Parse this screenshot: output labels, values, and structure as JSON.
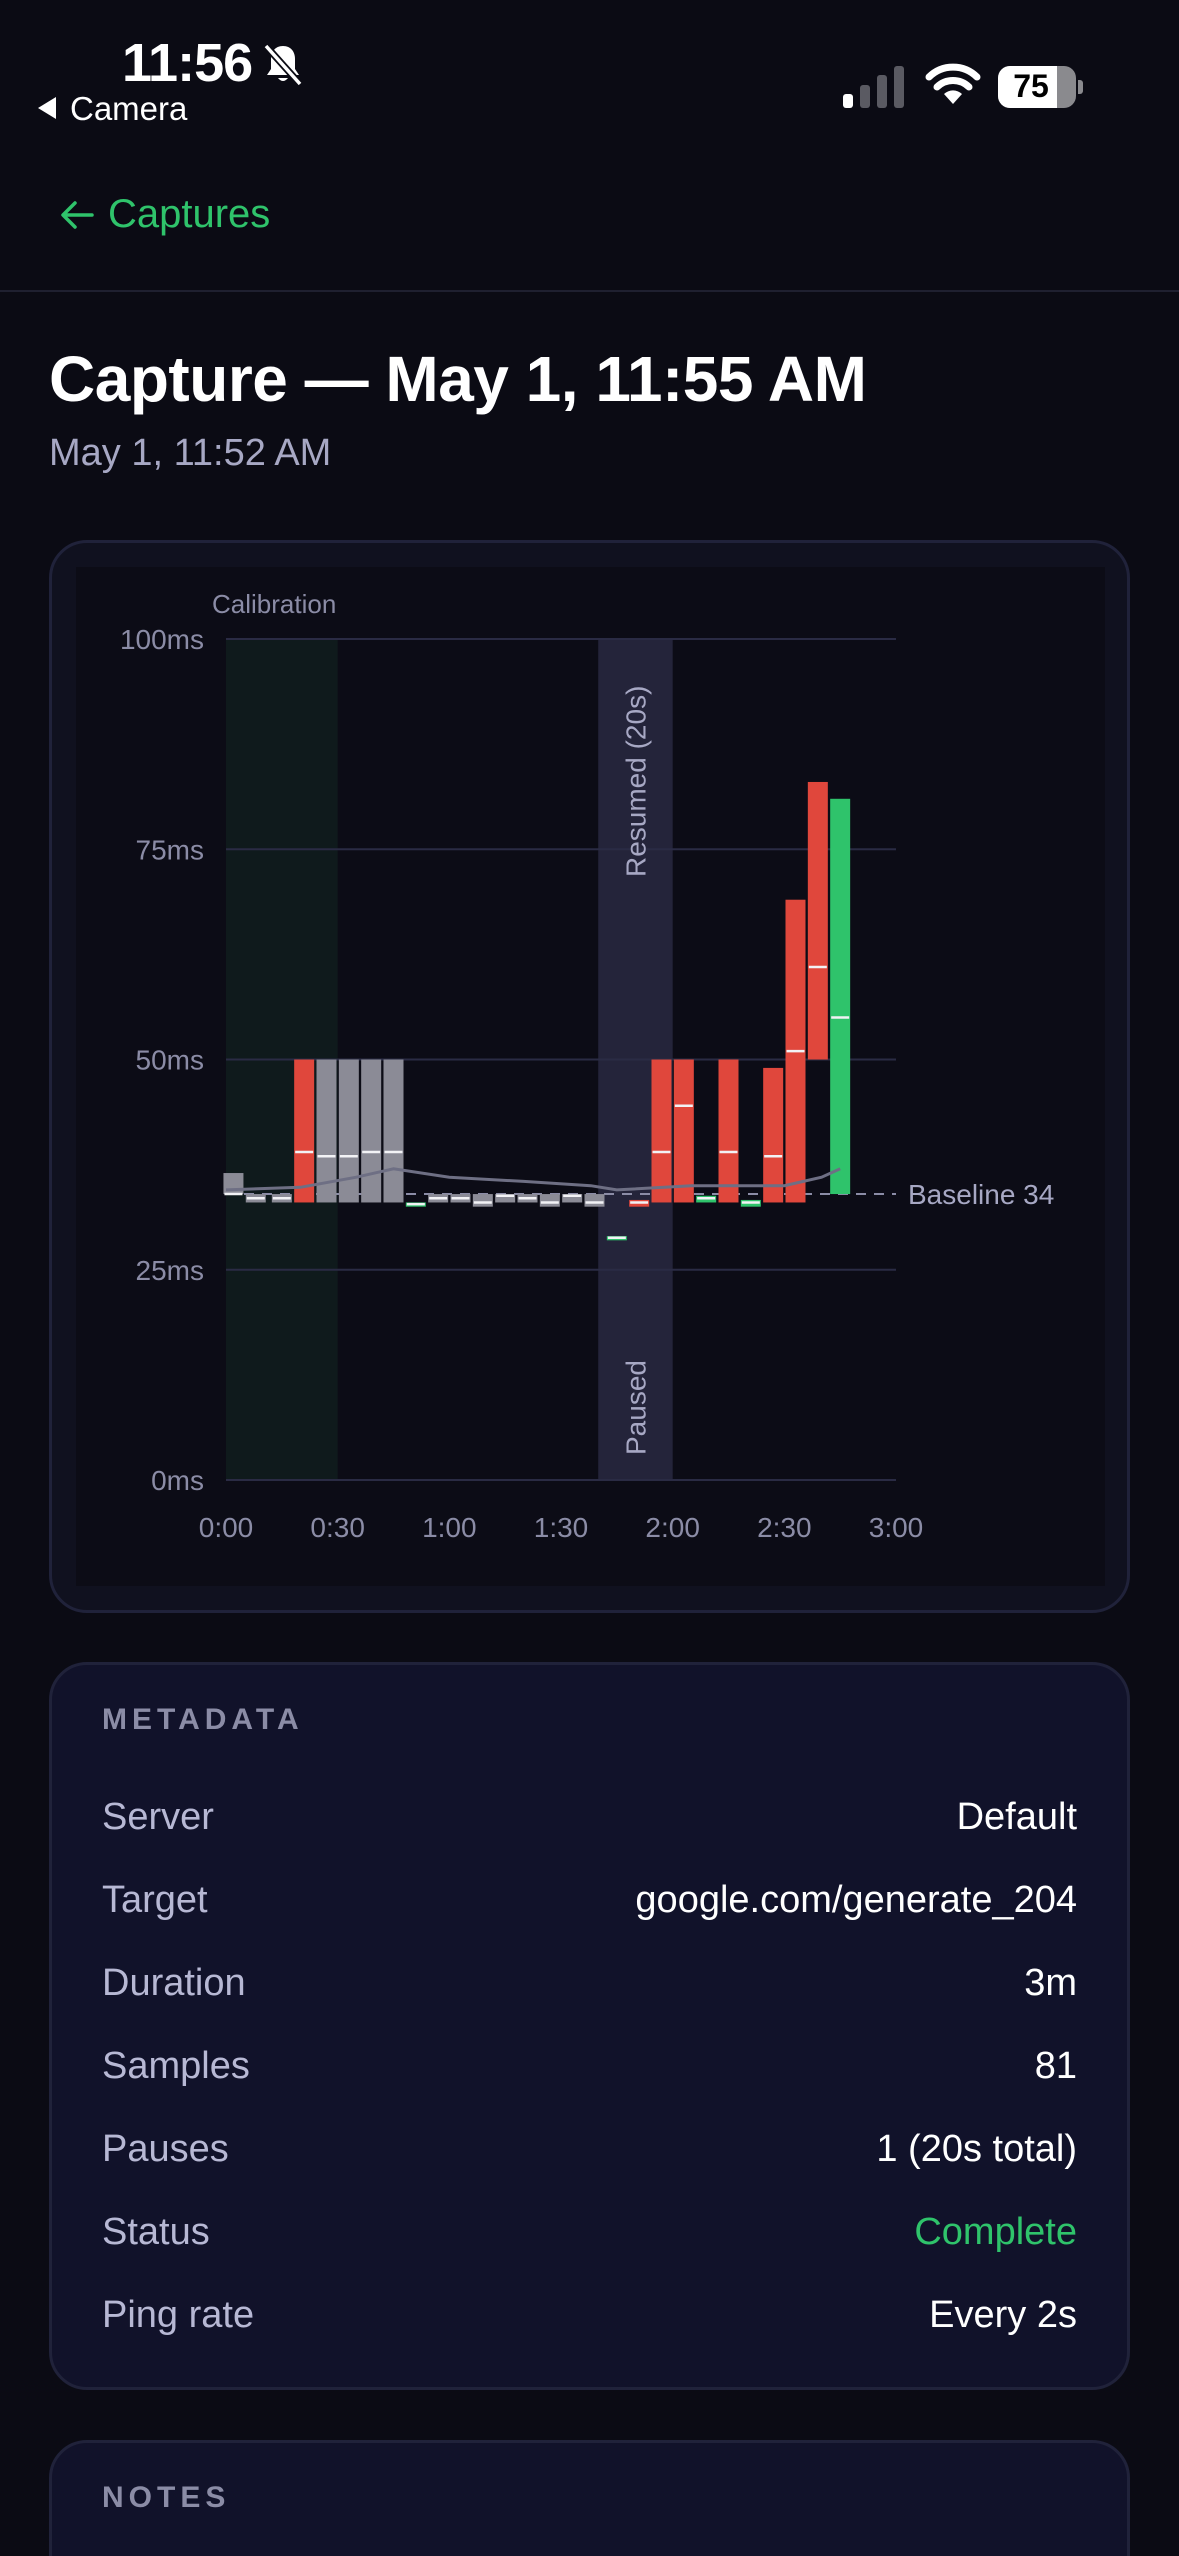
{
  "status_bar": {
    "time": "11:56",
    "back_app": "Camera",
    "battery": "75",
    "battery_level": 0.75
  },
  "nav": {
    "back_label": "Captures"
  },
  "header": {
    "title": "Capture — May 1, 11:55 AM",
    "subtitle": "May 1, 11:52 AM"
  },
  "chart_data": {
    "type": "bar",
    "x_unit": "time (m:ss)",
    "xlim": [
      0,
      180
    ],
    "ylim": [
      0,
      100
    ],
    "x_ticks": [
      "0:00",
      "0:30",
      "1:00",
      "1:30",
      "2:00",
      "2:30",
      "3:00"
    ],
    "y_ticks": [
      "0ms",
      "25ms",
      "50ms",
      "75ms",
      "100ms"
    ],
    "baseline": {
      "value": 34,
      "label": "Baseline 34"
    },
    "annotations": [
      {
        "label": "Calibration",
        "x_start": 0,
        "x_end": 30
      },
      {
        "label": "Paused",
        "x_start": 100,
        "x_end": 120
      },
      {
        "label": "Resumed (20s)",
        "x_start": 100,
        "x_end": 120
      }
    ],
    "bars": [
      {
        "x": 2,
        "low": 34,
        "high": 36.5,
        "mid": 34,
        "color": "#8b8b96"
      },
      {
        "x": 8,
        "low": 33,
        "high": 34,
        "mid": 33.5,
        "color": "#8b8b96"
      },
      {
        "x": 15,
        "low": 33,
        "high": 34,
        "mid": 33.5,
        "color": "#8b8b96"
      },
      {
        "x": 21,
        "low": 33,
        "high": 50,
        "mid": 39,
        "color": "#e0473c"
      },
      {
        "x": 27,
        "low": 33,
        "high": 50,
        "mid": 38.5,
        "color": "#8b8b96"
      },
      {
        "x": 33,
        "low": 33,
        "high": 50,
        "mid": 38.5,
        "color": "#8b8b96"
      },
      {
        "x": 39,
        "low": 33,
        "high": 50,
        "mid": 39,
        "color": "#8b8b96"
      },
      {
        "x": 45,
        "low": 33,
        "high": 50,
        "mid": 39,
        "color": "#8b8b96"
      },
      {
        "x": 51,
        "low": 32.5,
        "high": 33,
        "mid": 32.8,
        "color": "#2fc36b"
      },
      {
        "x": 57,
        "low": 33,
        "high": 34,
        "mid": 33.5,
        "color": "#8b8b96"
      },
      {
        "x": 63,
        "low": 33,
        "high": 34,
        "mid": 33.5,
        "color": "#8b8b96"
      },
      {
        "x": 69,
        "low": 32.5,
        "high": 34,
        "mid": 33,
        "color": "#8b8b96"
      },
      {
        "x": 75,
        "low": 33,
        "high": 34,
        "mid": 33.8,
        "color": "#8b8b96"
      },
      {
        "x": 81,
        "low": 33,
        "high": 34,
        "mid": 33.5,
        "color": "#8b8b96"
      },
      {
        "x": 87,
        "low": 32.5,
        "high": 34,
        "mid": 33,
        "color": "#8b8b96"
      },
      {
        "x": 93,
        "low": 33,
        "high": 34,
        "mid": 33.8,
        "color": "#8b8b96"
      },
      {
        "x": 99,
        "low": 32.5,
        "high": 34,
        "mid": 33,
        "color": "#8b8b96"
      },
      {
        "x": 105,
        "low": 28.5,
        "high": 29,
        "mid": 28.8,
        "color": "#2fc36b"
      },
      {
        "x": 111,
        "low": 32.5,
        "high": 33.3,
        "mid": 33,
        "color": "#e0473c"
      },
      {
        "x": 117,
        "low": 33,
        "high": 50,
        "mid": 39,
        "color": "#e0473c"
      },
      {
        "x": 123,
        "low": 33,
        "high": 50,
        "mid": 44.5,
        "color": "#e0473c"
      },
      {
        "x": 129,
        "low": 33,
        "high": 33.8,
        "mid": 33.5,
        "color": "#2fc36b"
      },
      {
        "x": 135,
        "low": 33,
        "high": 50,
        "mid": 39,
        "color": "#e0473c"
      },
      {
        "x": 141,
        "low": 32.5,
        "high": 33.3,
        "mid": 33,
        "color": "#2fc36b"
      },
      {
        "x": 147,
        "low": 33,
        "high": 49,
        "mid": 38.5,
        "color": "#e0473c"
      },
      {
        "x": 153,
        "low": 33,
        "high": 69,
        "mid": 51,
        "color": "#e0473c"
      },
      {
        "x": 159,
        "low": 50,
        "high": 83,
        "mid": 61,
        "color": "#e0473c"
      },
      {
        "x": 165,
        "low": 34,
        "high": 81,
        "mid": 55,
        "color": "#2fc36b"
      }
    ],
    "trend_line": [
      {
        "x": 0,
        "y": 34.5
      },
      {
        "x": 20,
        "y": 34.8
      },
      {
        "x": 35,
        "y": 36
      },
      {
        "x": 45,
        "y": 37
      },
      {
        "x": 60,
        "y": 36
      },
      {
        "x": 80,
        "y": 35.5
      },
      {
        "x": 98,
        "y": 35
      },
      {
        "x": 105,
        "y": 34.5
      },
      {
        "x": 125,
        "y": 35
      },
      {
        "x": 150,
        "y": 35
      },
      {
        "x": 160,
        "y": 36
      },
      {
        "x": 165,
        "y": 37
      }
    ]
  },
  "metadata": {
    "heading": "METADATA",
    "rows": [
      {
        "key": "Server",
        "value": "Default"
      },
      {
        "key": "Target",
        "value": "google.com/generate_204"
      },
      {
        "key": "Duration",
        "value": "3m"
      },
      {
        "key": "Samples",
        "value": "81"
      },
      {
        "key": "Pauses",
        "value": "1 (20s total)"
      },
      {
        "key": "Status",
        "value": "Complete",
        "status_color": "#2fc36b"
      },
      {
        "key": "Ping rate",
        "value": "Every 2s"
      }
    ]
  },
  "notes": {
    "heading": "NOTES"
  }
}
